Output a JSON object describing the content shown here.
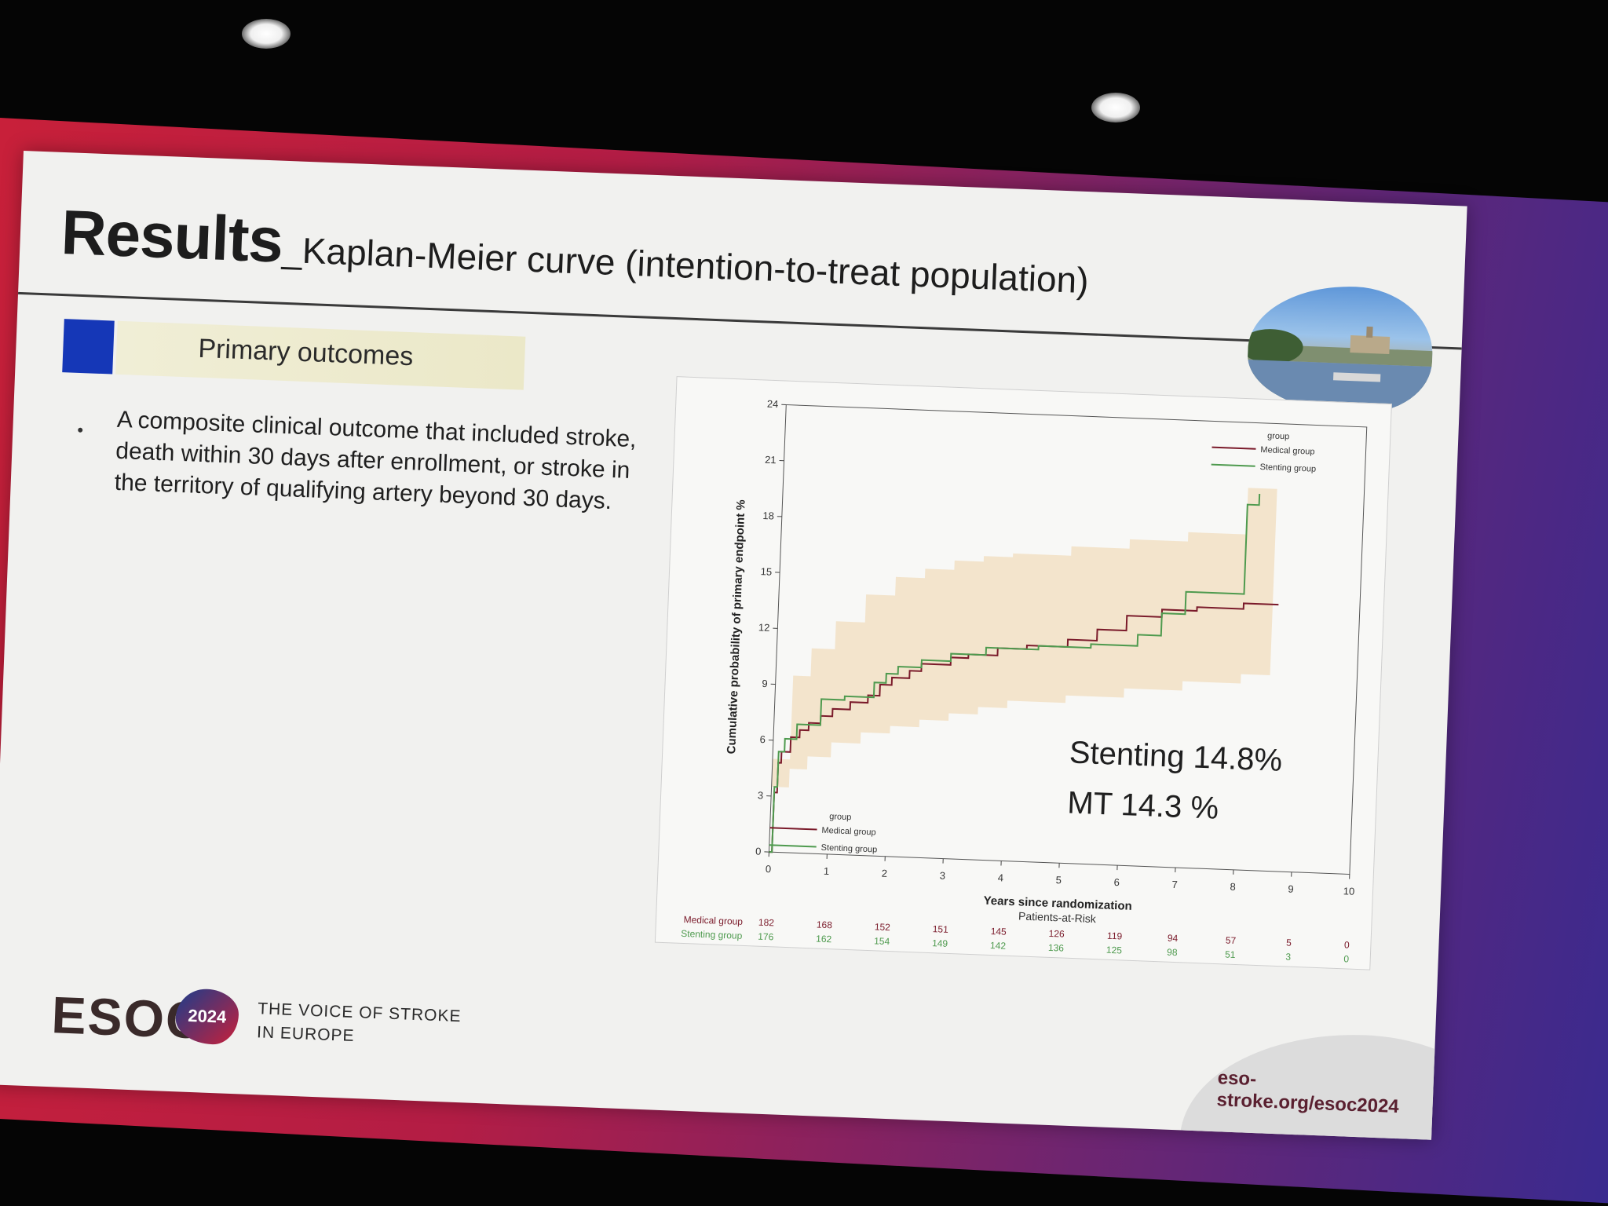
{
  "slide": {
    "title_main": "Results",
    "title_sub": "_Kaplan-Meier curve (intention-to-treat population)",
    "section_label": "Primary outcomes",
    "bullet": "A composite clinical outcome that included stroke, death within 30 days after enrollment, or stroke in the territory of qualifying artery beyond 30 days."
  },
  "footer": {
    "logo": "ESOC",
    "year": "2024",
    "tagline_line1": "THE VOICE OF STROKE",
    "tagline_line2": "IN EUROPE",
    "url": "eso-stroke.org/esoc2024"
  },
  "colors": {
    "medical": "#7a1a2a",
    "stenting": "#4e9a4e",
    "ci_band": "#f2e0c4",
    "accent_blue": "#1537b7"
  },
  "chart_data": {
    "type": "line",
    "xlabel": "Years since randomization",
    "ylabel": "Cumulative probability of primary endpoint %",
    "xlim": [
      0,
      10
    ],
    "ylim": [
      0,
      24
    ],
    "x_ticks": [
      0,
      1,
      2,
      3,
      4,
      5,
      6,
      7,
      8,
      9,
      10
    ],
    "y_ticks": [
      0,
      3,
      6,
      9,
      12,
      15,
      18,
      21,
      24
    ],
    "y_tick_labels": [
      "0",
      "3",
      "6",
      "9",
      "12",
      "15",
      "18",
      "21",
      "24"
    ],
    "legend_title": "group",
    "legend_placement": "top-right and bottom-left",
    "series": [
      {
        "name": "Medical group",
        "color_key": "medical",
        "points": [
          [
            0,
            0
          ],
          [
            0.05,
            3.2
          ],
          [
            0.1,
            4.8
          ],
          [
            0.15,
            5.4
          ],
          [
            0.3,
            6.2
          ],
          [
            0.45,
            6.6
          ],
          [
            0.6,
            7.0
          ],
          [
            0.8,
            7.4
          ],
          [
            1.0,
            7.8
          ],
          [
            1.3,
            8.2
          ],
          [
            1.6,
            8.6
          ],
          [
            1.8,
            9.2
          ],
          [
            2.0,
            9.6
          ],
          [
            2.3,
            10.0
          ],
          [
            2.5,
            10.4
          ],
          [
            3.0,
            10.8
          ],
          [
            3.3,
            11.0
          ],
          [
            3.8,
            11.4
          ],
          [
            4.3,
            11.6
          ],
          [
            5.0,
            12.0
          ],
          [
            5.5,
            12.6
          ],
          [
            6.0,
            13.4
          ],
          [
            6.6,
            13.8
          ],
          [
            7.2,
            14.0
          ],
          [
            8.0,
            14.3
          ]
        ]
      },
      {
        "name": "Stenting group",
        "color_key": "stenting",
        "points": [
          [
            0,
            0
          ],
          [
            0.05,
            3.5
          ],
          [
            0.1,
            5.4
          ],
          [
            0.2,
            6.1
          ],
          [
            0.4,
            6.9
          ],
          [
            0.8,
            8.3
          ],
          [
            1.2,
            8.5
          ],
          [
            1.7,
            9.3
          ],
          [
            1.9,
            9.8
          ],
          [
            2.1,
            10.2
          ],
          [
            2.5,
            10.6
          ],
          [
            3.0,
            11.0
          ],
          [
            3.6,
            11.4
          ],
          [
            4.5,
            11.6
          ],
          [
            5.4,
            11.8
          ],
          [
            6.2,
            12.4
          ],
          [
            6.6,
            13.6
          ],
          [
            7.0,
            14.8
          ],
          [
            7.9,
            14.8
          ],
          [
            8.0,
            19.6
          ],
          [
            8.2,
            20.2
          ]
        ]
      }
    ],
    "ci_band": {
      "x": [
        0,
        0.3,
        0.6,
        1,
        1.5,
        2,
        2.5,
        3,
        3.5,
        4,
        5,
        6,
        7,
        8,
        8.5
      ],
      "upper": [
        5,
        9.5,
        11,
        12.5,
        14,
        15,
        15.5,
        16,
        16.3,
        16.5,
        17,
        17.5,
        18,
        20.5,
        21
      ],
      "lower": [
        0,
        3.5,
        4.5,
        5.2,
        6,
        6.6,
        7,
        7.4,
        7.8,
        8.2,
        8.6,
        9,
        9.5,
        10,
        10.5
      ]
    },
    "annotations": [
      "Stenting 14.8%",
      "MT 14.3 %"
    ],
    "risk_table": {
      "title": "Patients-at-Risk",
      "rows": [
        {
          "label": "Medical group",
          "color_key": "medical",
          "values": [
            "182",
            "168",
            "152",
            "151",
            "145",
            "126",
            "119",
            "94",
            "57",
            "5",
            "0"
          ]
        },
        {
          "label": "Stenting group",
          "color_key": "stenting",
          "values": [
            "176",
            "162",
            "154",
            "149",
            "142",
            "136",
            "125",
            "98",
            "51",
            "3",
            "0"
          ]
        }
      ]
    }
  }
}
